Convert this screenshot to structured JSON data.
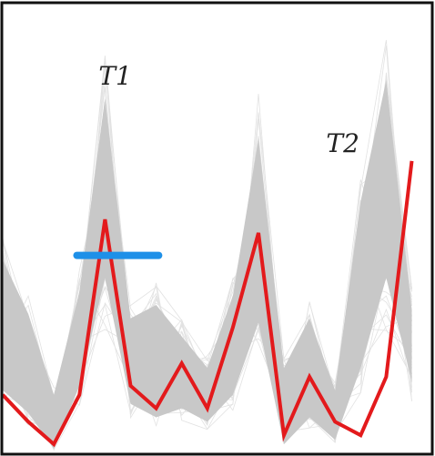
{
  "chart_data": {
    "type": "line",
    "title": "",
    "xlabel": "",
    "ylabel": "",
    "grid": false,
    "x": [
      0,
      1,
      2,
      3,
      4,
      5,
      6,
      7,
      8,
      9,
      10,
      11,
      12,
      13,
      14,
      15,
      16
    ],
    "xlim": [
      0,
      16.8
    ],
    "ylim": [
      0,
      1
    ],
    "band": {
      "color": "#c8c8c8",
      "upper": [
        0.43,
        0.31,
        0.13,
        0.36,
        0.79,
        0.3,
        0.33,
        0.26,
        0.19,
        0.35,
        0.7,
        0.19,
        0.3,
        0.14,
        0.56,
        0.83,
        0.32
      ],
      "lower": [
        0.14,
        0.09,
        0.01,
        0.15,
        0.39,
        0.11,
        0.08,
        0.1,
        0.07,
        0.13,
        0.29,
        0.02,
        0.08,
        0.03,
        0.19,
        0.39,
        0.16
      ]
    },
    "series": [
      {
        "values": [
          0.13,
          0.07,
          0.02,
          0.13,
          0.52,
          0.15,
          0.1,
          0.2,
          0.1,
          0.28,
          0.49,
          0.04,
          0.17,
          0.07,
          0.04,
          0.17,
          0.65
        ],
        "color": "#e31a1c"
      }
    ],
    "annotations": [
      {
        "text": "T1",
        "x": 4.4,
        "y": 0.82
      },
      {
        "text": "T2",
        "x": 13.3,
        "y": 0.67
      }
    ],
    "marker": {
      "x_start": 2.9,
      "x_end": 6.1,
      "y": 0.44,
      "color": "#1e90e8"
    }
  }
}
